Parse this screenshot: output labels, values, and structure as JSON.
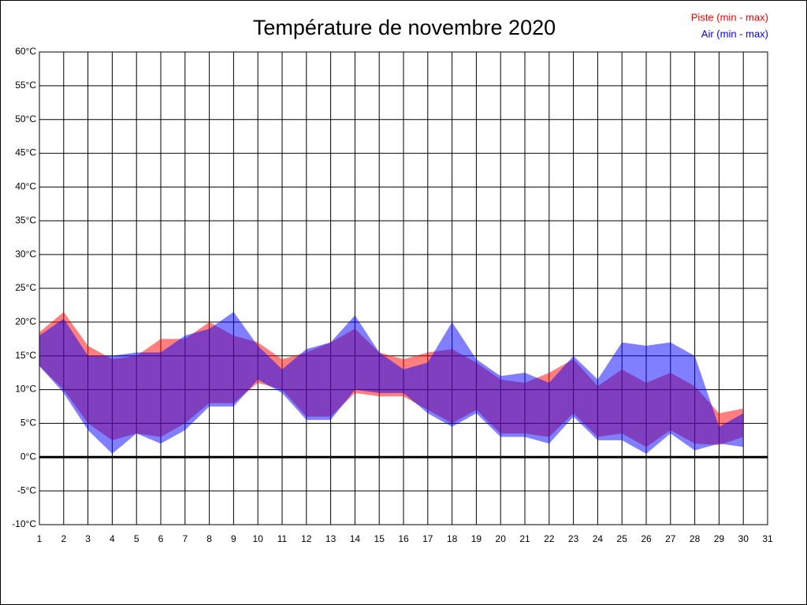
{
  "chart_data": {
    "type": "range-area",
    "title": "Température de novembre 2020",
    "x": [
      1,
      2,
      3,
      4,
      5,
      6,
      7,
      8,
      9,
      10,
      11,
      12,
      13,
      14,
      15,
      16,
      17,
      18,
      19,
      20,
      21,
      22,
      23,
      24,
      25,
      26,
      27,
      28,
      29,
      30
    ],
    "series": [
      {
        "name": "Piste (min - max)",
        "color": "#ff0000",
        "low": [
          13.5,
          10,
          5,
          2.5,
          3.5,
          3,
          5,
          8,
          8,
          11,
          10,
          6,
          6,
          9.5,
          9,
          9,
          7,
          5,
          7,
          3.5,
          3.5,
          3,
          6.5,
          3,
          3.5,
          1.5,
          4,
          2,
          1.8,
          3
        ],
        "high": [
          18.5,
          21.5,
          16.5,
          14.5,
          15,
          17.5,
          17.5,
          20,
          18,
          17,
          14.5,
          15.5,
          17,
          19,
          15.5,
          14.5,
          15.5,
          16,
          14,
          11.5,
          11,
          12.5,
          14.5,
          10.5,
          13,
          11,
          12.5,
          10.5,
          6.5,
          7.2
        ]
      },
      {
        "name": "Air (min - max)",
        "color": "#0000ff",
        "low": [
          13.5,
          9.5,
          4,
          0.5,
          3.5,
          2,
          4,
          7.5,
          7.5,
          11.5,
          9.5,
          5.5,
          5.5,
          10,
          9.5,
          9.5,
          6.5,
          4.5,
          6.5,
          3,
          3,
          2,
          6,
          2.5,
          2.5,
          0.5,
          3.5,
          1,
          2,
          1.5
        ],
        "high": [
          18,
          20.5,
          15,
          15,
          15.5,
          15.5,
          18,
          19,
          21.5,
          16.5,
          13,
          16,
          17,
          21,
          15.5,
          13,
          14,
          20,
          14.5,
          12,
          12.5,
          11,
          15,
          11.5,
          17,
          16.5,
          17,
          15,
          4.5,
          6.5
        ]
      }
    ],
    "xlim": [
      1,
      31
    ],
    "xticks": [
      1,
      2,
      3,
      4,
      5,
      6,
      7,
      8,
      9,
      10,
      11,
      12,
      13,
      14,
      15,
      16,
      17,
      18,
      19,
      20,
      21,
      22,
      23,
      24,
      25,
      26,
      27,
      28,
      29,
      30,
      31
    ],
    "ylim": [
      -10,
      60
    ],
    "yticks": [
      {
        "value": -10,
        "label": "-10°C"
      },
      {
        "value": -5,
        "label": "-5°C"
      },
      {
        "value": 0,
        "label": "0°C"
      },
      {
        "value": 5,
        "label": "5°C"
      },
      {
        "value": 10,
        "label": "10°C"
      },
      {
        "value": 15,
        "label": "15°C"
      },
      {
        "value": 20,
        "label": "20°C"
      },
      {
        "value": 25,
        "label": "25°C"
      },
      {
        "value": 30,
        "label": "30°C"
      },
      {
        "value": 35,
        "label": "35°C"
      },
      {
        "value": 40,
        "label": "40°C"
      },
      {
        "value": 45,
        "label": "45°C"
      },
      {
        "value": 50,
        "label": "50°C"
      },
      {
        "value": 55,
        "label": "55°C"
      },
      {
        "value": 60,
        "label": "60°C"
      }
    ],
    "grid": true,
    "legend": "upper right"
  }
}
